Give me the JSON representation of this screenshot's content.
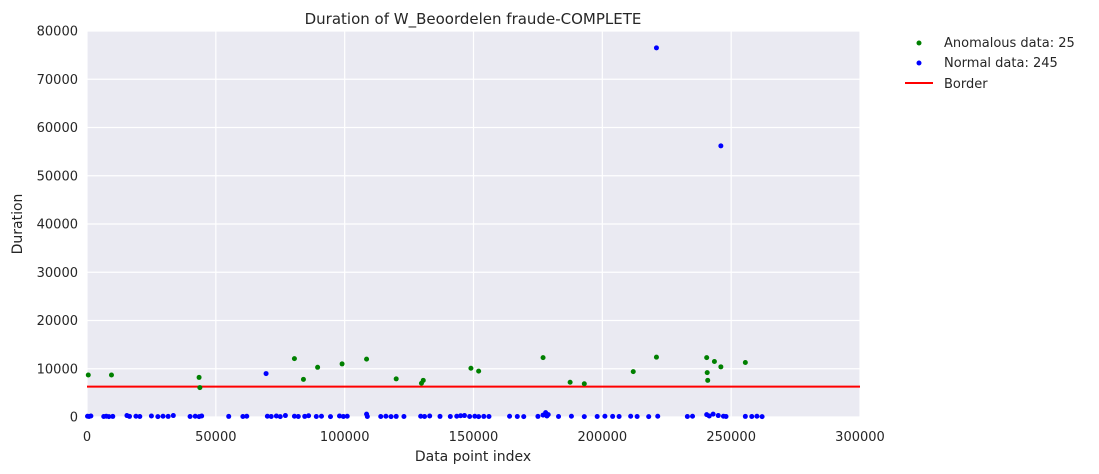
{
  "chart_data": {
    "type": "scatter",
    "title": "Duration of W_Beoordelen fraude-COMPLETE",
    "xlabel": "Data point index",
    "ylabel": "Duration",
    "xlim": [
      0,
      300000
    ],
    "ylim": [
      0,
      80000
    ],
    "xticks": [
      "0",
      "50000",
      "100000",
      "150000",
      "200000",
      "250000",
      "300000"
    ],
    "yticks": [
      "0",
      "10000",
      "20000",
      "30000",
      "40000",
      "50000",
      "60000",
      "70000",
      "80000"
    ],
    "grid": true,
    "legend_position": "outside-top-right",
    "border": {
      "label": "Border",
      "y": 6300,
      "color": "#ff0000"
    },
    "series": [
      {
        "name": "Anomalous data: 25",
        "color": "#008000",
        "points": [
          [
            500,
            8700
          ],
          [
            9500,
            8700
          ],
          [
            43500,
            8200
          ],
          [
            43800,
            6100
          ],
          [
            80500,
            12100
          ],
          [
            84000,
            7800
          ],
          [
            89500,
            10300
          ],
          [
            99000,
            11000
          ],
          [
            108500,
            12000
          ],
          [
            120000,
            7900
          ],
          [
            129800,
            7000
          ],
          [
            130500,
            7600
          ],
          [
            149000,
            10100
          ],
          [
            152000,
            9500
          ],
          [
            177000,
            12300
          ],
          [
            187500,
            7200
          ],
          [
            193000,
            6900
          ],
          [
            212000,
            9400
          ],
          [
            221000,
            12400
          ],
          [
            240500,
            12300
          ],
          [
            240700,
            9200
          ],
          [
            240900,
            7600
          ],
          [
            243500,
            11500
          ],
          [
            246000,
            10400
          ],
          [
            255500,
            11300
          ]
        ]
      },
      {
        "name": "Normal data: 245",
        "color": "#0000ff",
        "points": [
          [
            200,
            150
          ],
          [
            800,
            100
          ],
          [
            1500,
            200
          ],
          [
            6500,
            100
          ],
          [
            7500,
            150
          ],
          [
            8500,
            80
          ],
          [
            10000,
            120
          ],
          [
            15500,
            300
          ],
          [
            16500,
            120
          ],
          [
            19000,
            150
          ],
          [
            20500,
            100
          ],
          [
            25000,
            200
          ],
          [
            27500,
            80
          ],
          [
            29500,
            150
          ],
          [
            31500,
            120
          ],
          [
            33500,
            300
          ],
          [
            40000,
            100
          ],
          [
            42000,
            150
          ],
          [
            43500,
            80
          ],
          [
            44500,
            200
          ],
          [
            55000,
            120
          ],
          [
            60500,
            100
          ],
          [
            62000,
            150
          ],
          [
            69500,
            9000
          ],
          [
            70000,
            150
          ],
          [
            71500,
            100
          ],
          [
            73500,
            200
          ],
          [
            75000,
            80
          ],
          [
            77000,
            300
          ],
          [
            80500,
            150
          ],
          [
            82000,
            100
          ],
          [
            84500,
            120
          ],
          [
            86000,
            250
          ],
          [
            89000,
            100
          ],
          [
            91000,
            150
          ],
          [
            94500,
            80
          ],
          [
            98000,
            200
          ],
          [
            99500,
            100
          ],
          [
            101000,
            150
          ],
          [
            108500,
            600
          ],
          [
            108800,
            100
          ],
          [
            114000,
            100
          ],
          [
            116000,
            150
          ],
          [
            118000,
            80
          ],
          [
            120000,
            120
          ],
          [
            123000,
            100
          ],
          [
            129500,
            150
          ],
          [
            131000,
            100
          ],
          [
            133000,
            200
          ],
          [
            137000,
            120
          ],
          [
            141000,
            100
          ],
          [
            143500,
            150
          ],
          [
            145000,
            250
          ],
          [
            146500,
            300
          ],
          [
            148500,
            100
          ],
          [
            150500,
            150
          ],
          [
            152000,
            80
          ],
          [
            154000,
            120
          ],
          [
            156000,
            100
          ],
          [
            164000,
            150
          ],
          [
            167000,
            100
          ],
          [
            169500,
            80
          ],
          [
            175000,
            120
          ],
          [
            177000,
            400
          ],
          [
            178000,
            900
          ],
          [
            178500,
            200
          ],
          [
            179000,
            500
          ],
          [
            183000,
            100
          ],
          [
            188000,
            150
          ],
          [
            193000,
            80
          ],
          [
            198000,
            100
          ],
          [
            201000,
            150
          ],
          [
            204000,
            120
          ],
          [
            206500,
            100
          ],
          [
            211000,
            150
          ],
          [
            213500,
            100
          ],
          [
            218000,
            80
          ],
          [
            221000,
            76500
          ],
          [
            221500,
            150
          ],
          [
            233000,
            100
          ],
          [
            235000,
            150
          ],
          [
            240500,
            500
          ],
          [
            241500,
            200
          ],
          [
            243000,
            600
          ],
          [
            245000,
            300
          ],
          [
            246000,
            56200
          ],
          [
            247000,
            150
          ],
          [
            248000,
            100
          ],
          [
            255500,
            120
          ],
          [
            258000,
            100
          ],
          [
            260000,
            150
          ],
          [
            262000,
            80
          ]
        ]
      }
    ]
  }
}
